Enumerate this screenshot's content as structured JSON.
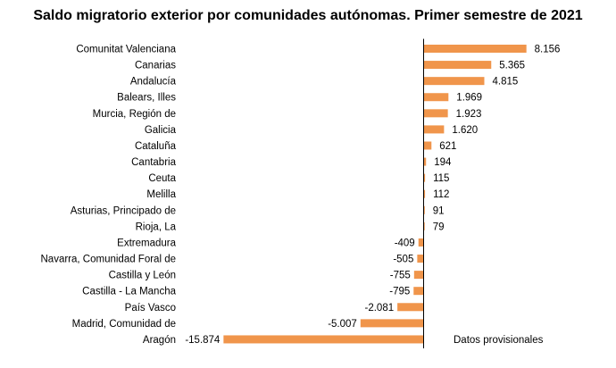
{
  "chart_data": {
    "type": "bar",
    "orientation": "horizontal",
    "title": "Saldo migratorio exterior por comunidades autónomas. Primer semestre de 2021",
    "categories": [
      "Comunitat Valenciana",
      "Canarias",
      "Andalucía",
      "Balears, Illes",
      "Murcia, Región de",
      "Galicia",
      "Cataluña",
      "Cantabria",
      "Ceuta",
      "Melilla",
      "Asturias, Principado de",
      "Rioja, La",
      "Extremadura",
      "Navarra, Comunidad Foral de",
      "Castilla y León",
      "Castilla - La Mancha",
      "País Vasco",
      "Madrid, Comunidad de",
      "Aragón"
    ],
    "values": [
      8156,
      5365,
      4815,
      1969,
      1923,
      1620,
      621,
      194,
      115,
      112,
      91,
      79,
      -409,
      -505,
      -755,
      -795,
      -2081,
      -5007,
      -15874
    ],
    "value_labels": [
      "8.156",
      "5.365",
      "4.815",
      "1.969",
      "1.923",
      "1.620",
      "621",
      "194",
      "115",
      "112",
      "91",
      "79",
      "-409",
      "-505",
      "-755",
      "-795",
      "-2.081",
      "-5.007",
      "-15.874"
    ],
    "bar_color": "#f0954b",
    "axis_color": "#000000",
    "note": "Datos provisionales",
    "xlabel": "",
    "ylabel": "",
    "grid": false,
    "legend": "none"
  }
}
